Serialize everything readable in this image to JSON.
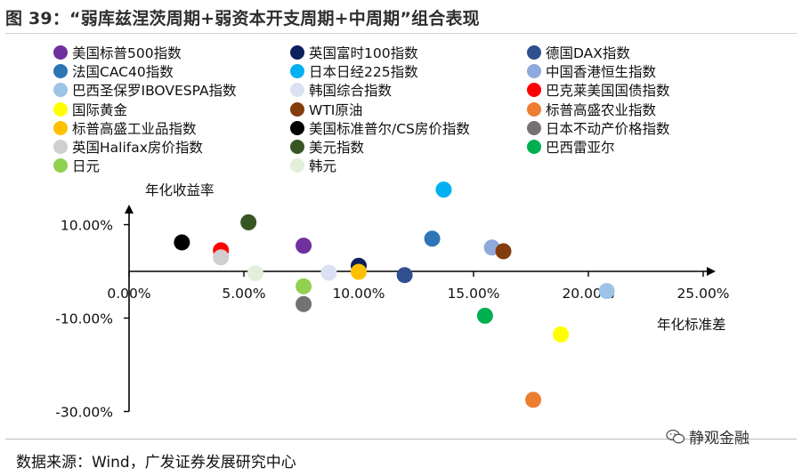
{
  "header": {
    "title": "图 39：“弱库兹涅茨周期+弱资本开支周期+中周期”组合表现"
  },
  "footer": {
    "source": "数据来源：Wind，广发证券发展研究中心",
    "watermark": "静观金融"
  },
  "chart_data": {
    "type": "scatter",
    "xlabel": "年化标准差",
    "ylabel": "年化收益率",
    "xlim": [
      0,
      25
    ],
    "ylim": [
      -30,
      20
    ],
    "x_ticks": [
      "0.00%",
      "5.00%",
      "10.00%",
      "15.00%",
      "20.00%",
      "25.00%"
    ],
    "y_ticks": [
      "10.00%",
      "-10.00%",
      "-30.00%"
    ],
    "legend_position": "top",
    "series": [
      {
        "name": "美国标普500指数",
        "color": "#7030a0",
        "x": 7.6,
        "y": 5.5
      },
      {
        "name": "英国富时100指数",
        "color": "#0d1f5c",
        "x": 10.0,
        "y": 1.2
      },
      {
        "name": "德国DAX指数",
        "color": "#2f4f8f",
        "x": 12.0,
        "y": -0.8
      },
      {
        "name": "法国CAC40指数",
        "color": "#2e75b6",
        "x": 13.2,
        "y": 7.0
      },
      {
        "name": "日本日经225指数",
        "color": "#00b0f0",
        "x": 13.7,
        "y": 17.5
      },
      {
        "name": "中国香港恒生指数",
        "color": "#8ea9db",
        "x": 15.8,
        "y": 5.1
      },
      {
        "name": "巴西圣保罗IBOVESPA指数",
        "color": "#9dc3e6",
        "x": 20.8,
        "y": -4.2
      },
      {
        "name": "韩国综合指数",
        "color": "#d9e1f2",
        "x": 8.7,
        "y": -0.3
      },
      {
        "name": "巴克莱美国国债指数",
        "color": "#ff0000",
        "x": 4.0,
        "y": 4.5
      },
      {
        "name": "国际黄金",
        "color": "#ffff00",
        "x": 18.8,
        "y": -13.5
      },
      {
        "name": "WTI原油",
        "color": "#843c0c",
        "x": 16.3,
        "y": 4.3
      },
      {
        "name": "标普高盛农业指数",
        "color": "#ed7d31",
        "x": 17.6,
        "y": -27.5
      },
      {
        "name": "标普高盛工业品指数",
        "color": "#ffc000",
        "x": 10.0,
        "y": -0.1
      },
      {
        "name": "美国标准普尔/CS房价指数",
        "color": "#000000",
        "x": 2.3,
        "y": 6.2
      },
      {
        "name": "日本不动产价格指数",
        "color": "#767171",
        "x": 7.6,
        "y": -7.0
      },
      {
        "name": "英国Halifax房价指数",
        "color": "#d0cece",
        "x": 4.0,
        "y": 3.0
      },
      {
        "name": "美元指数",
        "color": "#375623",
        "x": 5.2,
        "y": 10.5
      },
      {
        "name": "巴西雷亚尔",
        "color": "#00b050",
        "x": 15.5,
        "y": -9.5
      },
      {
        "name": "日元",
        "color": "#92d050",
        "x": 7.6,
        "y": -3.2
      },
      {
        "name": "韩元",
        "color": "#e2efda",
        "x": 5.5,
        "y": -0.4
      }
    ]
  }
}
